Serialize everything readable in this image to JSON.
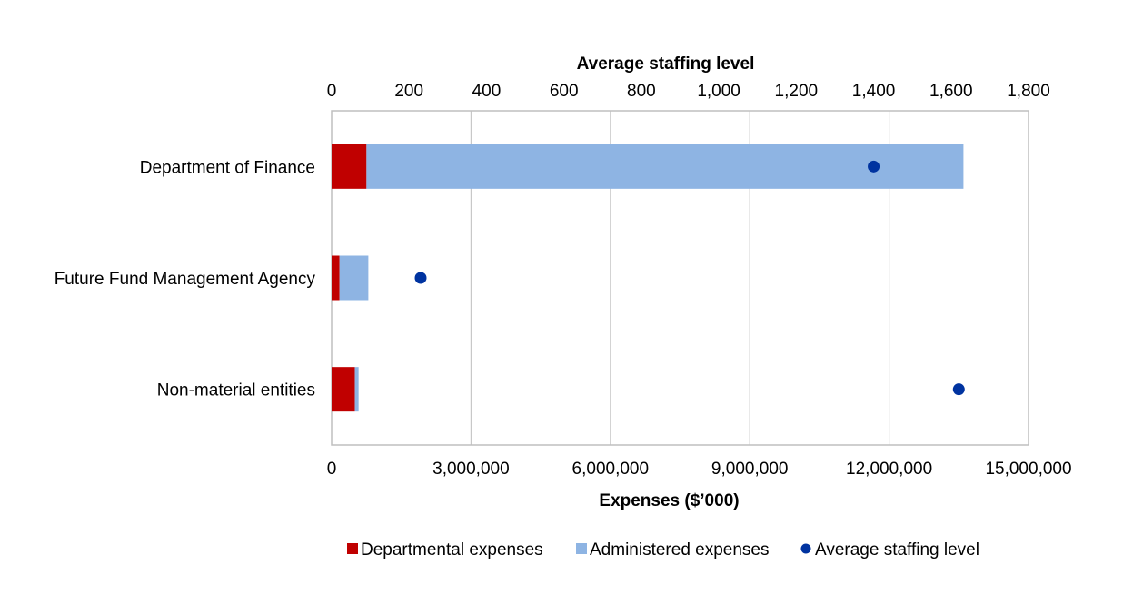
{
  "chart_data": {
    "type": "bar",
    "orientation": "horizontal",
    "stacked": true,
    "categories": [
      "Department of Finance",
      "Future Fund Management Agency",
      "Non-material entities"
    ],
    "series": [
      {
        "name": "Departmental expenses",
        "axis": "bottom",
        "color": "#c00000",
        "values": [
          750000,
          170000,
          500000
        ]
      },
      {
        "name": "Administered expenses",
        "axis": "bottom",
        "color": "#8eb4e3",
        "values": [
          12850000,
          620000,
          80000
        ]
      },
      {
        "name": "Average staffing level",
        "axis": "top",
        "type": "scatter",
        "color": "#0033a0",
        "values": [
          1400,
          230,
          1620
        ]
      }
    ],
    "x_bottom": {
      "label": "Expenses ($’000)",
      "range": [
        0,
        15000000
      ],
      "ticks": [
        0,
        3000000,
        6000000,
        9000000,
        12000000,
        15000000
      ],
      "tick_labels": [
        "0",
        "3,000,000",
        "6,000,000",
        "9,000,000",
        "12,000,000",
        "15,000,000"
      ]
    },
    "x_top": {
      "label": "Average staffing level",
      "range": [
        0,
        1800
      ],
      "ticks": [
        0,
        200,
        400,
        600,
        800,
        1000,
        1200,
        1400,
        1600,
        1800
      ],
      "tick_labels": [
        "0",
        "200",
        "400",
        "600",
        "800",
        "1,000",
        "1,200",
        "1,400",
        "1,600",
        "1,800"
      ]
    },
    "gridlines": "vertical",
    "legend": {
      "position": "bottom",
      "entries": [
        "Departmental expenses",
        "Administered expenses",
        "Average staffing level"
      ]
    }
  }
}
